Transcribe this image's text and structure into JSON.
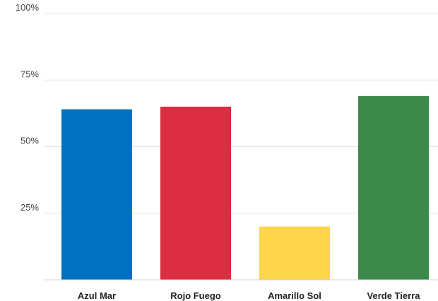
{
  "chart_data": {
    "type": "bar",
    "title": "",
    "xlabel": "",
    "ylabel": "",
    "categories": [
      "Azul Mar",
      "Rojo Fuego",
      "Amarillo Sol",
      "Verde Tierra"
    ],
    "values": [
      64,
      65,
      20,
      69
    ],
    "colors": [
      "#0070c0",
      "#dc2d42",
      "#ffd54a",
      "#3c8a4a"
    ],
    "ylim": [
      0,
      100
    ],
    "yticks": [
      25,
      50,
      75,
      100
    ],
    "ytick_labels": [
      "25%",
      "50%",
      "75%",
      "100%"
    ],
    "grid": true,
    "legend": "none"
  }
}
